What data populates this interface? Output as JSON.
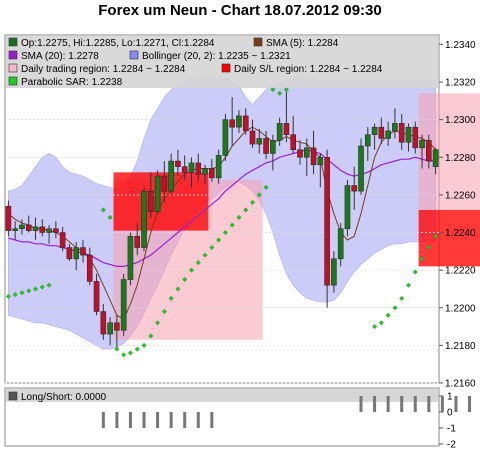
{
  "chart_data": {
    "type": "candlestick",
    "title": "Forex um Neun - Chart 18.07.2012 09:30",
    "main_panel": {
      "ylim": [
        1.216,
        1.2345
      ],
      "y_ticks": [
        "1.2340",
        "1.2320",
        "1.2300",
        "1.2280",
        "1.2260",
        "1.2240",
        "1.2220",
        "1.2200",
        "1.2180",
        "1.2160"
      ],
      "grid": true,
      "legend": [
        {
          "text": "Op:1.2275, Hi:1.2285, Lo:1.2271, Cl:1.2284",
          "color": "#1a6e1a",
          "marker": "square"
        },
        {
          "text": "SMA (5): 1.2284",
          "color": "#7a3b1a",
          "marker": "square"
        },
        {
          "text": "SMA (20): 1.2278",
          "color": "#9a1fd4",
          "marker": "square"
        },
        {
          "text": "Bollinger (20, 2): 1.2235 ~ 1.2321",
          "color": "#8888ee",
          "marker": "square"
        },
        {
          "text": "Daily trading region: 1.2284 ~ 1.2284",
          "color": "#f0b8c8",
          "marker": "square"
        },
        {
          "text": "Daily S/L region: 1.2284 ~ 1.2284",
          "color": "#ff0000",
          "marker": "square"
        },
        {
          "text": "Parabolic SAR: 1.2238",
          "color": "#22cc22",
          "marker": "square"
        }
      ],
      "candles": [
        [
          1.2254,
          1.2257,
          1.2238,
          1.2241
        ],
        [
          1.2241,
          1.2246,
          1.2236,
          1.2242
        ],
        [
          1.2242,
          1.2247,
          1.2239,
          1.2244
        ],
        [
          1.2244,
          1.2249,
          1.224,
          1.2241
        ],
        [
          1.2241,
          1.2248,
          1.2236,
          1.2243
        ],
        [
          1.2243,
          1.2247,
          1.2238,
          1.224
        ],
        [
          1.224,
          1.2244,
          1.2234,
          1.2242
        ],
        [
          1.2242,
          1.2246,
          1.2237,
          1.224
        ],
        [
          1.224,
          1.2243,
          1.223,
          1.2232
        ],
        [
          1.2232,
          1.2234,
          1.2225,
          1.2226
        ],
        [
          1.2226,
          1.2235,
          1.222,
          1.2232
        ],
        [
          1.2232,
          1.2236,
          1.2224,
          1.2228
        ],
        [
          1.2228,
          1.2232,
          1.2212,
          1.2214
        ],
        [
          1.2214,
          1.2218,
          1.2196,
          1.2198
        ],
        [
          1.2198,
          1.2202,
          1.2183,
          1.2186
        ],
        [
          1.2186,
          1.2195,
          1.218,
          1.2192
        ],
        [
          1.2192,
          1.2196,
          1.2178,
          1.2188
        ],
        [
          1.2188,
          1.2218,
          1.2185,
          1.2215
        ],
        [
          1.2215,
          1.224,
          1.2212,
          1.2238
        ],
        [
          1.2238,
          1.2245,
          1.2228,
          1.2232
        ],
        [
          1.2232,
          1.2264,
          1.223,
          1.2262
        ],
        [
          1.2262,
          1.2272,
          1.2248,
          1.2251
        ],
        [
          1.2251,
          1.2273,
          1.225,
          1.227
        ],
        [
          1.227,
          1.2278,
          1.2256,
          1.2262
        ],
        [
          1.2262,
          1.2282,
          1.226,
          1.2278
        ],
        [
          1.2278,
          1.2284,
          1.227,
          1.2275
        ],
        [
          1.2275,
          1.2281,
          1.2268,
          1.2272
        ],
        [
          1.2272,
          1.228,
          1.2264,
          1.2277
        ],
        [
          1.2277,
          1.2282,
          1.2268,
          1.2271
        ],
        [
          1.2271,
          1.2276,
          1.2266,
          1.2274
        ],
        [
          1.2274,
          1.2279,
          1.2267,
          1.2269
        ],
        [
          1.2269,
          1.2284,
          1.2266,
          1.2281
        ],
        [
          1.2281,
          1.2303,
          1.2278,
          1.23
        ],
        [
          1.23,
          1.2312,
          1.2286,
          1.2296
        ],
        [
          1.2296,
          1.2305,
          1.2293,
          1.2302
        ],
        [
          1.2302,
          1.2306,
          1.2292,
          1.2294
        ],
        [
          1.2294,
          1.23,
          1.2285,
          1.2287
        ],
        [
          1.2287,
          1.2295,
          1.2282,
          1.229
        ],
        [
          1.229,
          1.2294,
          1.2279,
          1.2282
        ],
        [
          1.2282,
          1.2292,
          1.2273,
          1.2289
        ],
        [
          1.2289,
          1.2301,
          1.2286,
          1.2298
        ],
        [
          1.2298,
          1.2315,
          1.2288,
          1.2292
        ],
        [
          1.2292,
          1.2302,
          1.2282,
          1.2284
        ],
        [
          1.2284,
          1.2289,
          1.2276,
          1.228
        ],
        [
          1.228,
          1.229,
          1.227,
          1.2285
        ],
        [
          1.2285,
          1.2294,
          1.2271,
          1.2276
        ],
        [
          1.2276,
          1.2282,
          1.2264,
          1.228
        ],
        [
          1.228,
          1.2284,
          1.22,
          1.2212
        ],
        [
          1.2212,
          1.223,
          1.2208,
          1.2226
        ],
        [
          1.2226,
          1.2245,
          1.2222,
          1.2242
        ],
        [
          1.2242,
          1.2268,
          1.2238,
          1.2265
        ],
        [
          1.2265,
          1.2275,
          1.2252,
          1.2262
        ],
        [
          1.2262,
          1.229,
          1.226,
          1.2286
        ],
        [
          1.2286,
          1.2296,
          1.2278,
          1.2292
        ],
        [
          1.2292,
          1.2298,
          1.2284,
          1.2296
        ],
        [
          1.2296,
          1.2301,
          1.2287,
          1.229
        ],
        [
          1.229,
          1.2299,
          1.2286,
          1.2294
        ],
        [
          1.2294,
          1.2306,
          1.229,
          1.2298
        ],
        [
          1.2298,
          1.2303,
          1.2284,
          1.2288
        ],
        [
          1.2288,
          1.2298,
          1.2283,
          1.2296
        ],
        [
          1.2296,
          1.2299,
          1.2282,
          1.2285
        ],
        [
          1.2285,
          1.2292,
          1.2274,
          1.2289
        ],
        [
          1.2289,
          1.2292,
          1.2274,
          1.2278
        ],
        [
          1.2275,
          1.2285,
          1.2271,
          1.2284
        ]
      ],
      "sma5": [
        1.225,
        1.2247,
        1.2245,
        1.2244,
        1.2242,
        1.2242,
        1.2241,
        1.224,
        1.2238,
        1.2235,
        1.2232,
        1.223,
        1.2226,
        1.222,
        1.2212,
        1.2204,
        1.2196,
        1.2194,
        1.2202,
        1.2212,
        1.2226,
        1.224,
        1.2251,
        1.2258,
        1.2263,
        1.2267,
        1.2271,
        1.2273,
        1.2274,
        1.2274,
        1.2274,
        1.2275,
        1.228,
        1.2286,
        1.229,
        1.2294,
        1.2296,
        1.2294,
        1.2291,
        1.2288,
        1.2289,
        1.2291,
        1.2289,
        1.2288,
        1.2287,
        1.2283,
        1.228,
        1.2262,
        1.225,
        1.224,
        1.2236,
        1.2238,
        1.225,
        1.2265,
        1.228,
        1.2288,
        1.2292,
        1.2294,
        1.2293,
        1.2292,
        1.2291,
        1.229,
        1.2288,
        1.2284
      ],
      "sma20": [
        1.2237,
        1.2236,
        1.2235,
        1.2235,
        1.2234,
        1.2234,
        1.2233,
        1.2233,
        1.2232,
        1.2231,
        1.223,
        1.2229,
        1.2228,
        1.2226,
        1.2224,
        1.2223,
        1.2222,
        1.2222,
        1.2223,
        1.2224,
        1.2226,
        1.2228,
        1.2231,
        1.2234,
        1.2237,
        1.224,
        1.2243,
        1.2246,
        1.2249,
        1.2252,
        1.2255,
        1.2258,
        1.2262,
        1.2265,
        1.2268,
        1.2271,
        1.2273,
        1.2275,
        1.2277,
        1.2278,
        1.228,
        1.2281,
        1.2282,
        1.2283,
        1.2284,
        1.2283,
        1.2282,
        1.2279,
        1.2276,
        1.2273,
        1.2271,
        1.227,
        1.2271,
        1.2272,
        1.2274,
        1.2276,
        1.2277,
        1.2278,
        1.2279,
        1.2279,
        1.228,
        1.2279,
        1.2278,
        1.2278
      ],
      "bollinger_upper": [
        1.2262,
        1.2263,
        1.2265,
        1.227,
        1.2275,
        1.228,
        1.2282,
        1.228,
        1.2275,
        1.2272,
        1.2271,
        1.227,
        1.2268,
        1.2266,
        1.2265,
        1.2264,
        1.2263,
        1.2265,
        1.227,
        1.2278,
        1.229,
        1.23,
        1.2306,
        1.2312,
        1.2316,
        1.2318,
        1.2321,
        1.2322,
        1.2323,
        1.2323,
        1.2323,
        1.2322,
        1.2322,
        1.2321,
        1.2318,
        1.2312,
        1.2308,
        1.2312,
        1.2316,
        1.2319,
        1.232,
        1.2321,
        1.2322,
        1.2323,
        1.2323,
        1.2322,
        1.2321,
        1.2321,
        1.2321,
        1.2321,
        1.2321,
        1.2321,
        1.2321,
        1.2321,
        1.2321,
        1.2321,
        1.2321,
        1.2321,
        1.2321,
        1.2321,
        1.2321,
        1.2321,
        1.2321,
        1.2321
      ],
      "bollinger_lower": [
        1.2196,
        1.2195,
        1.2194,
        1.2193,
        1.2192,
        1.2192,
        1.2191,
        1.219,
        1.2189,
        1.2188,
        1.2186,
        1.2184,
        1.2182,
        1.218,
        1.2178,
        1.2178,
        1.2179,
        1.2181,
        1.2185,
        1.219,
        1.2197,
        1.2205,
        1.2212,
        1.222,
        1.2228,
        1.2235,
        1.2242,
        1.2248,
        1.2252,
        1.2255,
        1.2258,
        1.2261,
        1.2264,
        1.2266,
        1.2267,
        1.2265,
        1.2262,
        1.2257,
        1.225,
        1.224,
        1.2228,
        1.2218,
        1.2212,
        1.2208,
        1.2205,
        1.2204,
        1.2203,
        1.2203,
        1.2204,
        1.2208,
        1.2214,
        1.2219,
        1.2223,
        1.2226,
        1.2229,
        1.2231,
        1.2233,
        1.2234,
        1.2234,
        1.2235,
        1.2235,
        1.2235,
        1.2235,
        1.2235
      ],
      "sar": [
        1.2206,
        1.2207,
        1.2208,
        1.2209,
        1.221,
        1.2211,
        1.2212,
        null,
        null,
        null,
        null,
        null,
        null,
        null,
        1.2252,
        1.2248,
        1.2178,
        1.2175,
        1.2176,
        1.2178,
        1.218,
        1.2185,
        1.2192,
        1.2198,
        1.2205,
        1.221,
        1.2215,
        1.222,
        1.2224,
        1.2228,
        1.2232,
        1.2236,
        1.224,
        1.2244,
        1.2248,
        1.2252,
        1.2256,
        1.226,
        1.2264,
        1.2316,
        1.2314,
        1.2316,
        null,
        null,
        null,
        null,
        null,
        null,
        null,
        null,
        null,
        null,
        null,
        null,
        1.219,
        1.2192,
        1.2196,
        1.22,
        1.2205,
        1.2212,
        1.2219,
        1.2226,
        1.2232,
        1.2238
      ],
      "sl_regions": [
        {
          "x_start": 16,
          "x_end": 30,
          "low": 1.2241,
          "high": 1.2272
        },
        {
          "x_start": 61,
          "x_end": 84,
          "low": 1.2222,
          "high": 1.2252
        }
      ],
      "trading_regions": [
        {
          "x_start": 16,
          "x_end": 38,
          "low": 1.2183,
          "high": 1.2268
        },
        {
          "x_start": 61,
          "x_end": 84,
          "low": 1.2252,
          "high": 1.2314
        }
      ]
    },
    "sub_panel": {
      "legend": [
        {
          "text": "Long/Short: 0.0000",
          "color": "#555555",
          "marker": "square"
        }
      ],
      "ylim": [
        -2,
        1
      ],
      "y_ticks": [
        "1",
        "0",
        "-1",
        "-2"
      ],
      "bars": [
        {
          "from": 14,
          "to": 31,
          "low": -1,
          "high": 0
        },
        {
          "from": 51,
          "to": 84,
          "low": 0,
          "high": 1
        }
      ]
    }
  }
}
